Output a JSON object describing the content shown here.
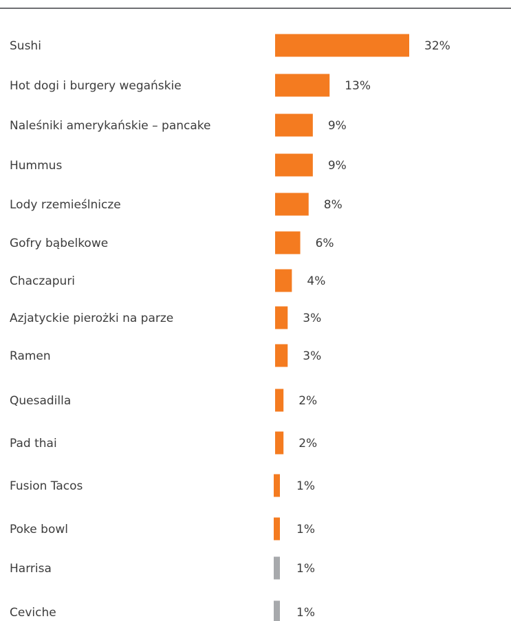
{
  "chart_data": {
    "type": "bar",
    "orientation": "horizontal",
    "categories": [
      "Sushi",
      "Hot dogi i burgery wegańskie",
      "Naleśniki amerykańskie – pancake",
      "Hummus",
      "Lody rzemieślnicze",
      "Gofry bąbelkowe",
      "Chaczapuri",
      "Azjatyckie pierożki na parze",
      "Ramen",
      "Quesadilla",
      "Pad thai",
      "Fusion Tacos",
      "Poke bowl",
      "Harrisa",
      "Ceviche"
    ],
    "values": [
      32,
      13,
      9,
      9,
      8,
      6,
      4,
      3,
      3,
      2,
      2,
      1,
      1,
      1,
      1
    ],
    "value_labels": [
      "32%",
      "13%",
      "9%",
      "9%",
      "8%",
      "6%",
      "4%",
      "3%",
      "3%",
      "2%",
      "2%",
      "1%",
      "1%",
      "1%",
      "1%"
    ],
    "bar_colors": [
      "#f47b20",
      "#f47b20",
      "#f47b20",
      "#f47b20",
      "#f47b20",
      "#f47b20",
      "#f47b20",
      "#f47b20",
      "#f47b20",
      "#f47b20",
      "#f47b20",
      "#f47b20",
      "#f47b20",
      "#a7a9ac",
      "#a7a9ac"
    ],
    "unit": "%",
    "xlim": [
      0,
      32
    ],
    "grid": false,
    "legend": "none"
  },
  "colors": {
    "accent": "#f47b20",
    "muted": "#a7a9ac",
    "text": "#3c3c3c",
    "rule": "#6d6e71"
  }
}
